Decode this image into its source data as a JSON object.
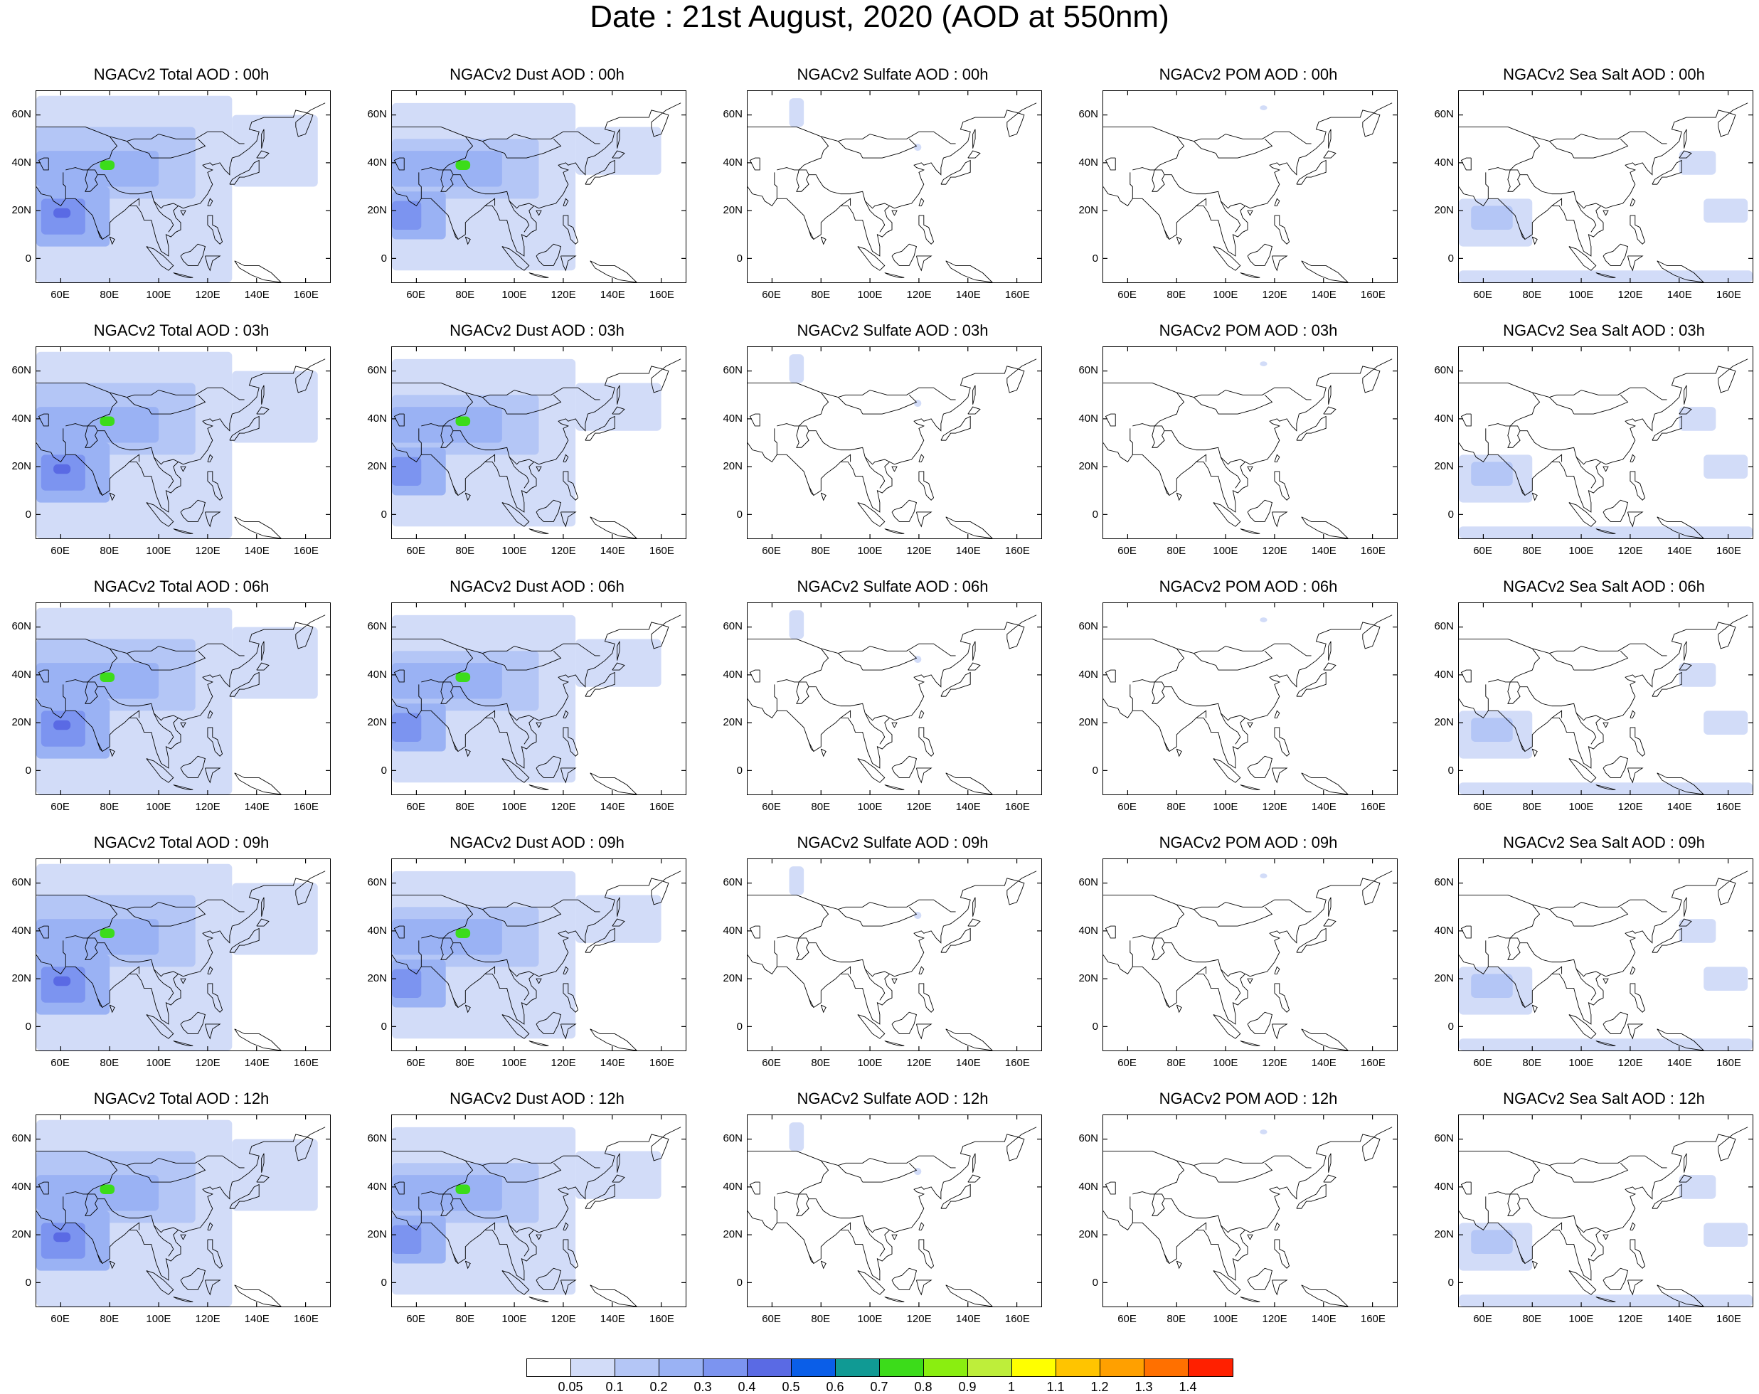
{
  "figure": {
    "title": "Date : 21st August, 2020 (AOD at 550nm)"
  },
  "axes": {
    "ylabels": [
      "60N",
      "40N",
      "20N",
      "0"
    ],
    "xlabels": [
      "60E",
      "80E",
      "100E",
      "120E",
      "140E",
      "160E"
    ],
    "lat_range": [
      -10,
      70
    ],
    "lon_range": [
      50,
      170
    ],
    "lat_ticks": [
      60,
      40,
      20,
      0
    ],
    "lon_ticks": [
      60,
      80,
      100,
      120,
      140,
      160
    ]
  },
  "panels": [
    [
      "NGACv2 Total AOD : 00h",
      "NGACv2 Dust AOD : 00h",
      "NGACv2 Sulfate AOD : 00h",
      "NGACv2 POM AOD : 00h",
      "NGACv2 Sea Salt AOD : 00h"
    ],
    [
      "NGACv2 Total AOD : 03h",
      "NGACv2 Dust AOD : 03h",
      "NGACv2 Sulfate AOD : 03h",
      "NGACv2 POM AOD : 03h",
      "NGACv2 Sea Salt AOD : 03h"
    ],
    [
      "NGACv2 Total AOD : 06h",
      "NGACv2 Dust AOD : 06h",
      "NGACv2 Sulfate AOD : 06h",
      "NGACv2 POM AOD : 06h",
      "NGACv2 Sea Salt AOD : 06h"
    ],
    [
      "NGACv2 Total AOD : 09h",
      "NGACv2 Dust AOD : 09h",
      "NGACv2 Sulfate AOD : 09h",
      "NGACv2 POM AOD : 09h",
      "NGACv2 Sea Salt  AOD : 09h"
    ],
    [
      "NGACv2 Total AOD  : 12h",
      "NGACv2 Dust AOD : 12h",
      "NGACv2 Sulfate AOD : 12h",
      "NGACv2 POM  AOD : 12h",
      "NGACv2 Sea Salt  AOD : 12h"
    ]
  ],
  "colorbar": {
    "labels": [
      "0.05",
      "0.1",
      "0.2",
      "0.3",
      "0.4",
      "0.5",
      "0.6",
      "0.7",
      "0.8",
      "0.9",
      "1",
      "1.1",
      "1.2",
      "1.3",
      "1.4"
    ],
    "colors": [
      "#ffffff",
      "#d2dcf8",
      "#b4c6f6",
      "#9ab2f4",
      "#7c94f0",
      "#5a6ae4",
      "#0a5ee8",
      "#109a94",
      "#3cdc1a",
      "#8aee10",
      "#beee3a",
      "#ffff00",
      "#ffc400",
      "#ffa000",
      "#ff7000",
      "#ff2000"
    ]
  },
  "map_style": {
    "coast_color": "#000000",
    "land_fill": "none",
    "level_colors": {
      "l1": "#d2dcf8",
      "l2": "#b4c6f6",
      "l3": "#9ab2f4",
      "l4": "#7c94f0",
      "l5": "#5a6ae4",
      "green": "#3cdc1a",
      "yellow": "#beee3a"
    }
  },
  "overlays": {
    "total": [
      {
        "level": "l1",
        "lon": [
          50,
          130
        ],
        "lat": [
          -10,
          68
        ]
      },
      {
        "level": "l1",
        "lon": [
          130,
          165
        ],
        "lat": [
          30,
          60
        ]
      },
      {
        "level": "l2",
        "lon": [
          50,
          115
        ],
        "lat": [
          25,
          55
        ]
      },
      {
        "level": "l3",
        "lon": [
          50,
          100
        ],
        "lat": [
          30,
          45
        ]
      },
      {
        "level": "l3",
        "lon": [
          50,
          80
        ],
        "lat": [
          5,
          30
        ]
      },
      {
        "level": "l4",
        "lon": [
          52,
          70
        ],
        "lat": [
          10,
          25
        ]
      },
      {
        "level": "l5",
        "lon": [
          57,
          64
        ],
        "lat": [
          17,
          21
        ]
      },
      {
        "level": "green",
        "lon": [
          76,
          82
        ],
        "lat": [
          37,
          41
        ]
      }
    ],
    "dust": [
      {
        "level": "l1",
        "lon": [
          50,
          125
        ],
        "lat": [
          -5,
          65
        ]
      },
      {
        "level": "l1",
        "lon": [
          125,
          160
        ],
        "lat": [
          35,
          55
        ]
      },
      {
        "level": "l2",
        "lon": [
          50,
          110
        ],
        "lat": [
          25,
          50
        ]
      },
      {
        "level": "l3",
        "lon": [
          50,
          95
        ],
        "lat": [
          30,
          45
        ]
      },
      {
        "level": "l3",
        "lon": [
          50,
          72
        ],
        "lat": [
          8,
          28
        ]
      },
      {
        "level": "l4",
        "lon": [
          50,
          62
        ],
        "lat": [
          12,
          24
        ]
      },
      {
        "level": "green",
        "lon": [
          76,
          82
        ],
        "lat": [
          37,
          41
        ]
      }
    ],
    "sulfate": [
      {
        "level": "l1",
        "lon": [
          67,
          73
        ],
        "lat": [
          55,
          67
        ]
      },
      {
        "level": "l1",
        "lon": [
          118,
          121
        ],
        "lat": [
          45,
          48
        ]
      }
    ],
    "pom": [
      {
        "level": "l1",
        "lon": [
          114,
          117
        ],
        "lat": [
          62,
          64
        ]
      }
    ],
    "seasalt": [
      {
        "level": "l1",
        "lon": [
          50,
          80
        ],
        "lat": [
          5,
          25
        ]
      },
      {
        "level": "l1",
        "lon": [
          50,
          170
        ],
        "lat": [
          -10,
          -5
        ]
      },
      {
        "level": "l1",
        "lon": [
          150,
          168
        ],
        "lat": [
          15,
          25
        ]
      },
      {
        "level": "l1",
        "lon": [
          140,
          155
        ],
        "lat": [
          35,
          45
        ]
      },
      {
        "level": "l2",
        "lon": [
          55,
          72
        ],
        "lat": [
          12,
          22
        ]
      }
    ]
  },
  "coastlines": [
    [
      [
        50,
        30
      ],
      [
        52,
        27
      ],
      [
        56,
        26
      ],
      [
        57,
        24
      ],
      [
        60,
        22
      ],
      [
        62,
        25
      ],
      [
        66,
        25
      ],
      [
        68,
        23
      ],
      [
        70,
        21
      ],
      [
        73,
        18
      ],
      [
        75,
        12
      ],
      [
        77,
        8
      ],
      [
        80,
        10
      ],
      [
        80,
        15
      ],
      [
        82,
        17
      ],
      [
        86,
        20
      ],
      [
        88,
        22
      ],
      [
        91,
        22
      ],
      [
        93,
        19
      ],
      [
        94,
        16
      ],
      [
        97,
        16
      ],
      [
        98,
        12
      ],
      [
        99,
        8
      ],
      [
        101,
        3
      ],
      [
        104,
        1
      ],
      [
        104,
        5
      ],
      [
        103,
        10
      ],
      [
        105,
        9
      ],
      [
        107,
        11
      ],
      [
        109,
        12
      ],
      [
        109,
        15
      ],
      [
        107,
        17
      ],
      [
        106,
        20
      ],
      [
        108,
        22
      ],
      [
        110,
        21
      ],
      [
        113,
        22
      ],
      [
        117,
        23
      ],
      [
        120,
        27
      ],
      [
        122,
        31
      ],
      [
        121,
        33
      ],
      [
        120,
        36
      ],
      [
        122,
        37
      ],
      [
        119,
        38
      ],
      [
        118,
        39
      ],
      [
        121,
        40
      ],
      [
        122,
        39
      ],
      [
        125,
        40
      ],
      [
        127,
        37
      ],
      [
        129,
        35
      ],
      [
        129,
        38
      ],
      [
        130,
        42
      ],
      [
        133,
        43
      ],
      [
        137,
        46
      ],
      [
        140,
        49
      ],
      [
        141,
        53
      ],
      [
        137,
        54
      ],
      [
        138,
        57
      ],
      [
        143,
        59
      ],
      [
        150,
        59
      ],
      [
        155,
        59
      ],
      [
        156,
        62
      ],
      [
        160,
        61
      ],
      [
        163,
        60
      ],
      [
        162,
        57
      ],
      [
        160,
        52
      ],
      [
        157,
        51
      ],
      [
        156,
        55
      ],
      [
        156,
        57
      ],
      [
        162,
        62
      ],
      [
        168,
        65
      ]
    ],
    [
      [
        129,
        31
      ],
      [
        131,
        31
      ],
      [
        133,
        34
      ],
      [
        135,
        34
      ],
      [
        138,
        35
      ],
      [
        141,
        36
      ],
      [
        141,
        41
      ],
      [
        139,
        40
      ],
      [
        137,
        37
      ],
      [
        133,
        35
      ],
      [
        130,
        33
      ],
      [
        129,
        31
      ]
    ],
    [
      [
        140,
        42
      ],
      [
        143,
        42
      ],
      [
        145,
        44
      ],
      [
        142,
        45
      ],
      [
        140,
        42
      ]
    ],
    [
      [
        142,
        46
      ],
      [
        143,
        50
      ],
      [
        143,
        54
      ],
      [
        142,
        52
      ],
      [
        142,
        46
      ]
    ],
    [
      [
        120,
        22
      ],
      [
        121,
        25
      ],
      [
        122,
        24
      ],
      [
        121,
        22
      ],
      [
        120,
        22
      ]
    ],
    [
      [
        110,
        18
      ],
      [
        111,
        20
      ],
      [
        109,
        20
      ],
      [
        110,
        18
      ]
    ],
    [
      [
        120,
        18
      ],
      [
        122,
        18
      ],
      [
        122,
        14
      ],
      [
        124,
        13
      ],
      [
        125,
        10
      ],
      [
        126,
        7
      ],
      [
        125,
        6
      ],
      [
        123,
        8
      ],
      [
        122,
        12
      ],
      [
        120,
        14
      ],
      [
        120,
        18
      ]
    ],
    [
      [
        95,
        5
      ],
      [
        98,
        4
      ],
      [
        102,
        1
      ],
      [
        106,
        -3
      ],
      [
        104,
        -5
      ],
      [
        101,
        -3
      ],
      [
        98,
        1
      ],
      [
        95,
        5
      ]
    ],
    [
      [
        106,
        -6
      ],
      [
        110,
        -7
      ],
      [
        114,
        -8
      ],
      [
        112,
        -8
      ],
      [
        108,
        -7
      ],
      [
        106,
        -6
      ]
    ],
    [
      [
        109,
        1
      ],
      [
        110,
        2
      ],
      [
        113,
        3
      ],
      [
        116,
        6
      ],
      [
        119,
        5
      ],
      [
        118,
        1
      ],
      [
        116,
        -3
      ],
      [
        112,
        -3
      ],
      [
        110,
        -1
      ],
      [
        109,
        1
      ]
    ],
    [
      [
        119,
        1
      ],
      [
        121,
        1
      ],
      [
        125,
        1
      ],
      [
        122,
        -1
      ],
      [
        121,
        -5
      ],
      [
        120,
        -3
      ],
      [
        119,
        1
      ]
    ],
    [
      [
        131,
        -1
      ],
      [
        135,
        -3
      ],
      [
        141,
        -3
      ],
      [
        146,
        -6
      ],
      [
        150,
        -10
      ],
      [
        143,
        -9
      ],
      [
        138,
        -7
      ],
      [
        133,
        -4
      ],
      [
        131,
        -1
      ]
    ],
    [
      [
        80,
        9
      ],
      [
        82,
        8
      ],
      [
        81,
        6
      ],
      [
        80,
        9
      ]
    ],
    [
      [
        50,
        55
      ],
      [
        60,
        55
      ],
      [
        70,
        55
      ],
      [
        80,
        51
      ],
      [
        87,
        49
      ],
      [
        90,
        50
      ],
      [
        97,
        50
      ],
      [
        100,
        52
      ],
      [
        107,
        50
      ],
      [
        115,
        50
      ],
      [
        120,
        53
      ],
      [
        126,
        53
      ],
      [
        133,
        48
      ],
      [
        135,
        48
      ]
    ],
    [
      [
        80,
        51
      ],
      [
        83,
        47
      ],
      [
        81,
        45
      ],
      [
        80,
        42
      ],
      [
        75,
        40
      ],
      [
        73,
        39
      ],
      [
        71,
        37
      ],
      [
        74,
        37
      ],
      [
        75,
        35
      ],
      [
        78,
        35
      ],
      [
        79,
        33
      ],
      [
        81,
        30
      ],
      [
        84,
        28
      ],
      [
        88,
        27
      ],
      [
        92,
        27
      ],
      [
        97,
        28
      ],
      [
        98,
        24
      ],
      [
        101,
        21
      ],
      [
        102,
        22
      ],
      [
        106,
        23
      ],
      [
        108,
        22
      ]
    ],
    [
      [
        62,
        37
      ],
      [
        66,
        38
      ],
      [
        69,
        37
      ],
      [
        71,
        37
      ]
    ],
    [
      [
        61,
        36
      ],
      [
        61,
        31
      ],
      [
        62,
        30
      ],
      [
        62,
        25
      ]
    ],
    [
      [
        71,
        37
      ],
      [
        70,
        33
      ],
      [
        71,
        30
      ],
      [
        70,
        28
      ],
      [
        72,
        28
      ],
      [
        75,
        31
      ],
      [
        74,
        33
      ],
      [
        75,
        35
      ]
    ],
    [
      [
        97,
        42
      ],
      [
        105,
        42
      ],
      [
        112,
        44
      ],
      [
        119,
        47
      ],
      [
        116,
        50
      ]
    ],
    [
      [
        87,
        49
      ],
      [
        90,
        46
      ],
      [
        96,
        44
      ],
      [
        97,
        42
      ]
    ],
    [
      [
        88,
        22
      ],
      [
        92,
        25
      ],
      [
        92,
        22
      ]
    ],
    [
      [
        98,
        24
      ],
      [
        100,
        20
      ],
      [
        102,
        18
      ],
      [
        105,
        16
      ],
      [
        106,
        14
      ],
      [
        104,
        11
      ]
    ],
    [
      [
        55,
        42
      ],
      [
        55,
        37
      ],
      [
        53,
        37
      ],
      [
        51,
        41
      ],
      [
        53,
        42
      ],
      [
        55,
        42
      ]
    ],
    [
      [
        75,
        12
      ],
      [
        76,
        9
      ],
      [
        77,
        8
      ]
    ]
  ]
}
